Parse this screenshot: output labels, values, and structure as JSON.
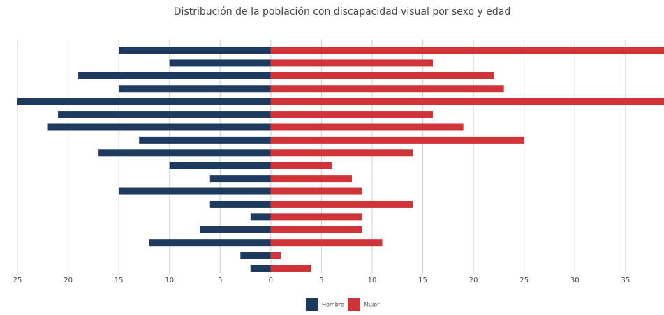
{
  "chart_data": {
    "type": "bar",
    "orientation": "horizontal",
    "title": "Distribución de la población con discapacidad visual por sexo y edad",
    "categories": [
      null,
      null,
      null,
      null,
      null,
      null,
      null,
      null,
      null,
      null,
      null,
      null,
      null,
      null,
      null,
      null,
      null,
      null
    ],
    "series": [
      {
        "name": "Hombre",
        "color": "#1f3a5f",
        "values": [
          -15,
          -10,
          -19,
          -15,
          -25,
          -21,
          -22,
          -13,
          -17,
          -10,
          -6,
          -15,
          -6,
          -2,
          -7,
          -12,
          -3,
          -2
        ]
      },
      {
        "name": "Mujer",
        "color": "#d13438",
        "values": [
          40,
          16,
          22,
          23,
          40,
          16,
          19,
          25,
          14,
          6,
          8,
          9,
          14,
          9,
          9,
          11,
          1,
          4
        ]
      }
    ],
    "xlim": [
      -25,
      38.8
    ],
    "xticks": [
      {
        "value": -25,
        "label": "25"
      },
      {
        "value": -20,
        "label": "20"
      },
      {
        "value": -15,
        "label": "15"
      },
      {
        "value": -10,
        "label": "10"
      },
      {
        "value": -5,
        "label": "5"
      },
      0,
      5,
      10,
      15,
      20,
      25,
      30,
      35
    ],
    "grid": true,
    "legend": "bottom"
  }
}
